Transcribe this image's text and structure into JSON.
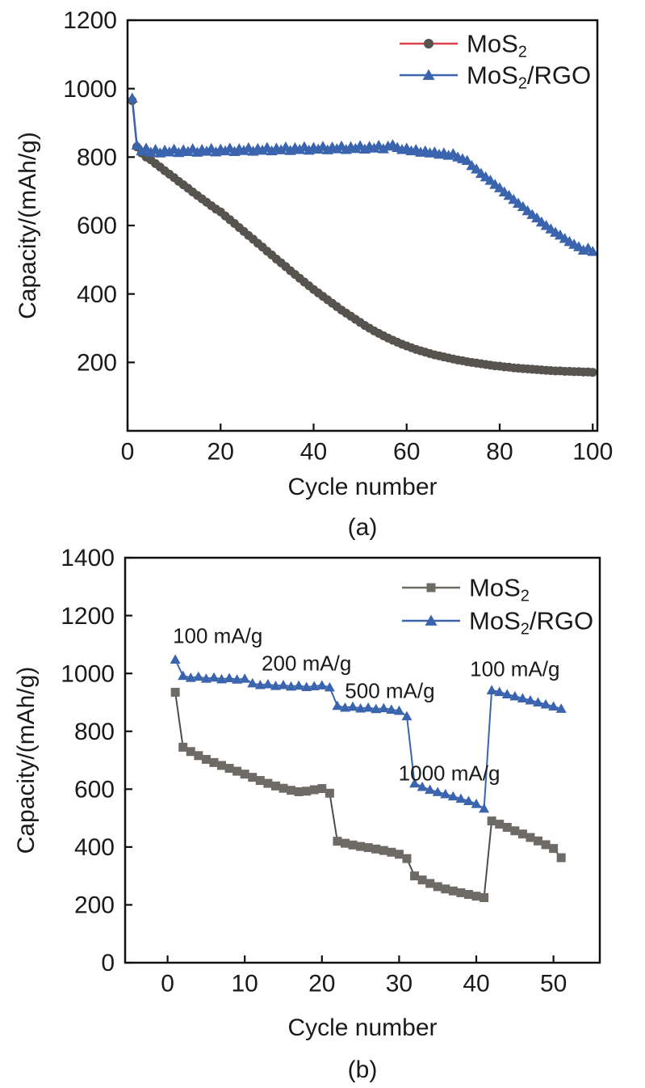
{
  "figure": {
    "background": "#ffffff",
    "axis_color": "#111111"
  },
  "chart_data": [
    {
      "type": "line",
      "caption": "(a)",
      "xlabel": "Cycle number",
      "ylabel": "Capacity/(mAh/g)",
      "xlim": [
        0,
        101
      ],
      "ylim": [
        0,
        1200
      ],
      "xticks": [
        0,
        20,
        40,
        60,
        80,
        100
      ],
      "yticks": [
        200,
        400,
        600,
        800,
        1000,
        1200
      ],
      "grid": false,
      "legend_position": "top-right-inside",
      "legend": [
        {
          "label": "MoS₂",
          "line_color": "#dc4049",
          "marker": "circle",
          "marker_color": "#57534e"
        },
        {
          "label": "MoS₂/RGO",
          "line_color": "#3b64ae",
          "marker": "triangle",
          "marker_color": "#3b64ae"
        }
      ],
      "series": [
        {
          "name": "MoS2",
          "marker": "circle",
          "marker_color": "#57534e",
          "marker_size": 5.5,
          "line_color": "#dc4049",
          "line_width": 2,
          "x_start": 1,
          "x_step": 1,
          "y": [
            965,
            830,
            812,
            800,
            792,
            781,
            771,
            760,
            750,
            740,
            729,
            719,
            709,
            698,
            688,
            678,
            668,
            658,
            648,
            640,
            628,
            617,
            606,
            594,
            583,
            571,
            560,
            548,
            537,
            525,
            514,
            502,
            491,
            480,
            468,
            457,
            446,
            435,
            424,
            413,
            403,
            393,
            383,
            373,
            363,
            353,
            344,
            335,
            326,
            317,
            308,
            300,
            292,
            285,
            278,
            271,
            265,
            259,
            253,
            248,
            243,
            238,
            234,
            230,
            226,
            222,
            219,
            216,
            213,
            210,
            207,
            205,
            202,
            200,
            198,
            196,
            194,
            192,
            190,
            189,
            187,
            186,
            184,
            183,
            182,
            181,
            180,
            179,
            178,
            177,
            176,
            175,
            175,
            174,
            174,
            173,
            173,
            172,
            172,
            171
          ]
        },
        {
          "name": "MoS2/RGO",
          "marker": "triangle",
          "marker_color": "#3b64ae",
          "marker_size": 7,
          "line_color": "#3b64ae",
          "line_width": 2.5,
          "x_start": 1,
          "x_step": 1,
          "y": [
            972,
            835,
            818,
            826,
            814,
            822,
            812,
            820,
            815,
            823,
            813,
            821,
            816,
            824,
            814,
            822,
            817,
            825,
            815,
            823,
            818,
            826,
            816,
            824,
            819,
            827,
            817,
            825,
            820,
            828,
            818,
            826,
            821,
            829,
            819,
            827,
            822,
            830,
            820,
            828,
            823,
            831,
            821,
            829,
            824,
            832,
            822,
            830,
            825,
            833,
            823,
            831,
            826,
            834,
            824,
            832,
            836,
            828,
            822,
            826,
            818,
            822,
            814,
            818,
            812,
            815,
            808,
            812,
            805,
            810,
            800,
            795,
            790,
            775,
            765,
            752,
            742,
            732,
            720,
            710,
            698,
            688,
            676,
            665,
            655,
            643,
            632,
            622,
            610,
            600,
            590,
            580,
            572,
            562,
            553,
            545,
            538,
            528,
            534,
            524
          ]
        }
      ],
      "annotations": []
    },
    {
      "type": "line",
      "caption": "(b)",
      "xlabel": "Cycle number",
      "ylabel": "Capacity/(mAh/g)",
      "xlim": [
        -5.5,
        56
      ],
      "ylim": [
        0,
        1400
      ],
      "xticks": [
        0,
        10,
        20,
        30,
        40,
        50
      ],
      "yticks": [
        0,
        200,
        400,
        600,
        800,
        1000,
        1200,
        1400
      ],
      "grid": false,
      "legend_position": "top-right-inside",
      "legend": [
        {
          "label": "MoS₂",
          "line_color": "#6e6b67",
          "marker": "square",
          "marker_color": "#6e6b67"
        },
        {
          "label": "MoS₂/RGO",
          "line_color": "#3b64ae",
          "marker": "triangle",
          "marker_color": "#3b64ae"
        }
      ],
      "series": [
        {
          "name": "MoS2",
          "marker": "square",
          "marker_color": "#6e6b67",
          "marker_size": 5.5,
          "line_color": "#4d4d4d",
          "line_width": 2,
          "x_start": 1,
          "x_step": 1,
          "y": [
            935,
            745,
            730,
            716,
            703,
            692,
            682,
            672,
            662,
            652,
            641,
            630,
            620,
            611,
            603,
            596,
            591,
            593,
            598,
            602,
            586,
            420,
            413,
            407,
            402,
            398,
            393,
            388,
            382,
            375,
            360,
            300,
            286,
            274,
            263,
            255,
            248,
            242,
            236,
            230,
            225,
            490,
            479,
            468,
            456,
            445,
            433,
            421,
            408,
            395,
            363
          ]
        },
        {
          "name": "MoS2/RGO",
          "marker": "triangle",
          "marker_color": "#3b64ae",
          "marker_size": 6.5,
          "line_color": "#3b64ae",
          "line_width": 2,
          "x_start": 1,
          "x_step": 1,
          "y": [
            1048,
            992,
            985,
            989,
            982,
            986,
            980,
            984,
            979,
            982,
            966,
            960,
            963,
            957,
            960,
            955,
            958,
            953,
            956,
            959,
            952,
            888,
            882,
            885,
            879,
            882,
            877,
            880,
            875,
            871,
            852,
            620,
            608,
            598,
            590,
            583,
            575,
            567,
            559,
            549,
            533,
            942,
            936,
            928,
            921,
            914,
            907,
            900,
            893,
            886,
            878
          ]
        }
      ],
      "annotations": [
        {
          "text": "100 mA/g",
          "x": 6.5,
          "y": 1130
        },
        {
          "text": "200 mA/g",
          "x": 18,
          "y": 1035
        },
        {
          "text": "500 mA/g",
          "x": 28.8,
          "y": 940
        },
        {
          "text": "1000 mA/g",
          "x": 36.5,
          "y": 655
        },
        {
          "text": "100 mA/g",
          "x": 45,
          "y": 1015
        }
      ]
    }
  ]
}
